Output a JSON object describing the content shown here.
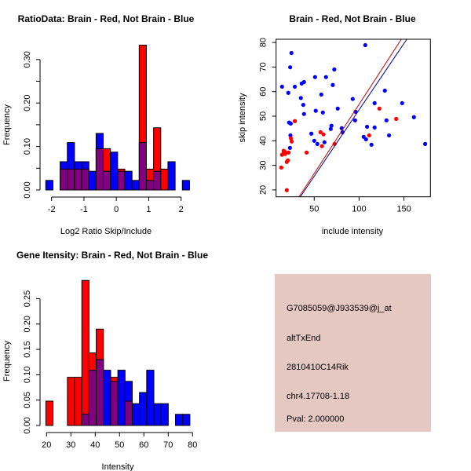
{
  "colors": {
    "brain": "#FF0000",
    "not_brain": "#0000FF",
    "overlap": "#800080",
    "info_bg": "#E6C8C2",
    "pval": "#8B0000"
  },
  "chart_data": [
    {
      "type": "bar",
      "title": "RatioData: Brain - Red, Not Brain - Blue",
      "xlabel": "Log2 Ratio Skip/Include",
      "ylabel": "Frequency",
      "xticks": [
        "-2",
        "-1",
        "0",
        "1",
        "2"
      ],
      "xtick_values": [
        -2,
        -1,
        0,
        1,
        2
      ],
      "yticks": [
        "0.00",
        "0.10",
        "0.20",
        "0.30"
      ],
      "ytick_values": [
        0,
        0.1,
        0.2,
        0.3
      ],
      "yminor_ticks": [
        0.05,
        0.15,
        0.25
      ],
      "bin_start": -2.18,
      "bin_width": 0.222,
      "series": [
        {
          "name": "Not Brain",
          "color": "blue",
          "values": [
            0.022,
            0,
            0.065,
            0.109,
            0.065,
            0.065,
            0.043,
            0.13,
            0.043,
            0.087,
            0.043,
            0.043,
            0.022,
            0.109,
            0.022,
            0.043,
            0,
            0.065,
            0,
            0.022
          ]
        },
        {
          "name": "Brain",
          "color": "red",
          "values": [
            0,
            0,
            0.048,
            0.048,
            0.048,
            0.048,
            0,
            0.095,
            0.095,
            0,
            0.048,
            0,
            0,
            0.333,
            0.048,
            0.143,
            0.048,
            0,
            0,
            0
          ]
        }
      ]
    },
    {
      "type": "scatter",
      "title": "Brain - Red, Not Brain - Blue",
      "xlabel": "include intensity",
      "ylabel": "skip intensity",
      "xticks": [
        "50",
        "100",
        "150"
      ],
      "xtick_values": [
        50,
        100,
        150
      ],
      "yticks": [
        "20",
        "30",
        "40",
        "50",
        "60",
        "70",
        "80"
      ],
      "ytick_values": [
        20,
        30,
        40,
        50,
        60,
        70,
        80
      ],
      "xlim": [
        7.5,
        179.5
      ],
      "ylim": [
        17.2,
        81.3
      ],
      "series": [
        {
          "name": "Not Brain",
          "color": "blue",
          "points": [
            [
              14.1,
              62.0
            ],
            [
              23.2,
              69.9
            ],
            [
              24.6,
              75.7
            ],
            [
              21.1,
              59.5
            ],
            [
              28.4,
              62.0
            ],
            [
              35.1,
              57.4
            ],
            [
              36.0,
              63.3
            ],
            [
              38.6,
              63.9
            ],
            [
              37.8,
              54.6
            ],
            [
              38.6,
              50.9
            ],
            [
              22.0,
              47.4
            ],
            [
              23.8,
              47.0
            ],
            [
              23.5,
              42.2
            ],
            [
              22.9,
              37.1
            ],
            [
              50.9,
              65.9
            ],
            [
              63.1,
              65.9
            ],
            [
              72.4,
              69.0
            ],
            [
              70.7,
              62.7
            ],
            [
              57.9,
              58.8
            ],
            [
              51.7,
              52.2
            ],
            [
              59.6,
              51.5
            ],
            [
              76.2,
              53.1
            ],
            [
              46.8,
              42.9
            ],
            [
              50.0,
              40.0
            ],
            [
              53.5,
              38.7
            ],
            [
              61.4,
              39.4
            ],
            [
              68.4,
              44.8
            ],
            [
              69.2,
              46.1
            ],
            [
              80.6,
              45.1
            ],
            [
              81.5,
              43.5
            ],
            [
              106.9,
              78.9
            ],
            [
              92.9,
              57.0
            ],
            [
              96.1,
              51.8
            ],
            [
              95.5,
              48.3
            ],
            [
              108.9,
              45.7
            ],
            [
              105.1,
              41.6
            ],
            [
              107.7,
              40.6
            ],
            [
              113.8,
              38.4
            ],
            [
              117.3,
              55.3
            ],
            [
              117.3,
              45.4
            ],
            [
              128.7,
              60.4
            ],
            [
              130.5,
              48.3
            ],
            [
              133.4,
              42.2
            ],
            [
              148.0,
              55.3
            ],
            [
              161.1,
              49.6
            ],
            [
              173.6,
              38.7
            ]
          ]
        },
        {
          "name": "Brain",
          "color": "red",
          "points": [
            [
              13.3,
              29.1
            ],
            [
              14.1,
              34.3
            ],
            [
              15.9,
              34.9
            ],
            [
              17.3,
              35.5
            ],
            [
              15.9,
              35.9
            ],
            [
              17.6,
              34.6
            ],
            [
              19.4,
              31.4
            ],
            [
              20.6,
              32.0
            ],
            [
              19.4,
              19.9
            ],
            [
              21.4,
              35.2
            ],
            [
              24.0,
              41.0
            ],
            [
              24.9,
              39.7
            ],
            [
              28.4,
              48.0
            ],
            [
              41.5,
              35.2
            ],
            [
              57.0,
              43.5
            ],
            [
              60.3,
              42.6
            ],
            [
              58.6,
              37.8
            ],
            [
              72.7,
              38.7
            ],
            [
              111.2,
              42.2
            ],
            [
              122.6,
              53.1
            ],
            [
              141.3,
              48.9
            ]
          ]
        }
      ],
      "lines": [
        {
          "name": "Brain fit",
          "color": "#CC0000",
          "intercept": -1.41,
          "slope": 0.5623
        },
        {
          "name": "Not Brain fit",
          "color": "#00008B",
          "intercept": -1.43,
          "slope": 0.54
        }
      ]
    },
    {
      "type": "bar",
      "title": "Gene Itensity: Brain - Red, Not Brain - Blue",
      "xlabel": "Intensity",
      "ylabel": "Frequency",
      "xticks": [
        "20",
        "30",
        "40",
        "50",
        "60",
        "70",
        "80"
      ],
      "xtick_values": [
        20,
        30,
        40,
        50,
        60,
        70,
        80
      ],
      "yticks": [
        "0.00",
        "0.05",
        "0.10",
        "0.15",
        "0.20",
        "0.25"
      ],
      "ytick_values": [
        0,
        0.05,
        0.1,
        0.15,
        0.2,
        0.25
      ],
      "yminor_ticks": [],
      "bin_start": 19.7,
      "bin_width": 2.96,
      "series": [
        {
          "name": "Not Brain",
          "color": "blue",
          "values": [
            0,
            0,
            0,
            0,
            0,
            0.022,
            0.109,
            0.13,
            0.109,
            0.087,
            0.109,
            0.087,
            0.043,
            0.065,
            0.109,
            0.043,
            0.043,
            0,
            0.022,
            0.022
          ]
        },
        {
          "name": "Brain",
          "color": "red",
          "values": [
            0.048,
            0,
            0,
            0.095,
            0.095,
            0.286,
            0.143,
            0.19,
            0,
            0.095,
            0,
            0.048,
            0,
            0,
            0,
            0,
            0,
            0,
            0,
            0
          ]
        }
      ]
    }
  ],
  "info": {
    "probe": "G7085059@J933539@j_at",
    "event": "altTxEnd",
    "gene": "2810410C14Rik",
    "location": "chr4.17708-1.18",
    "pval": "Pval: 2.000000"
  }
}
